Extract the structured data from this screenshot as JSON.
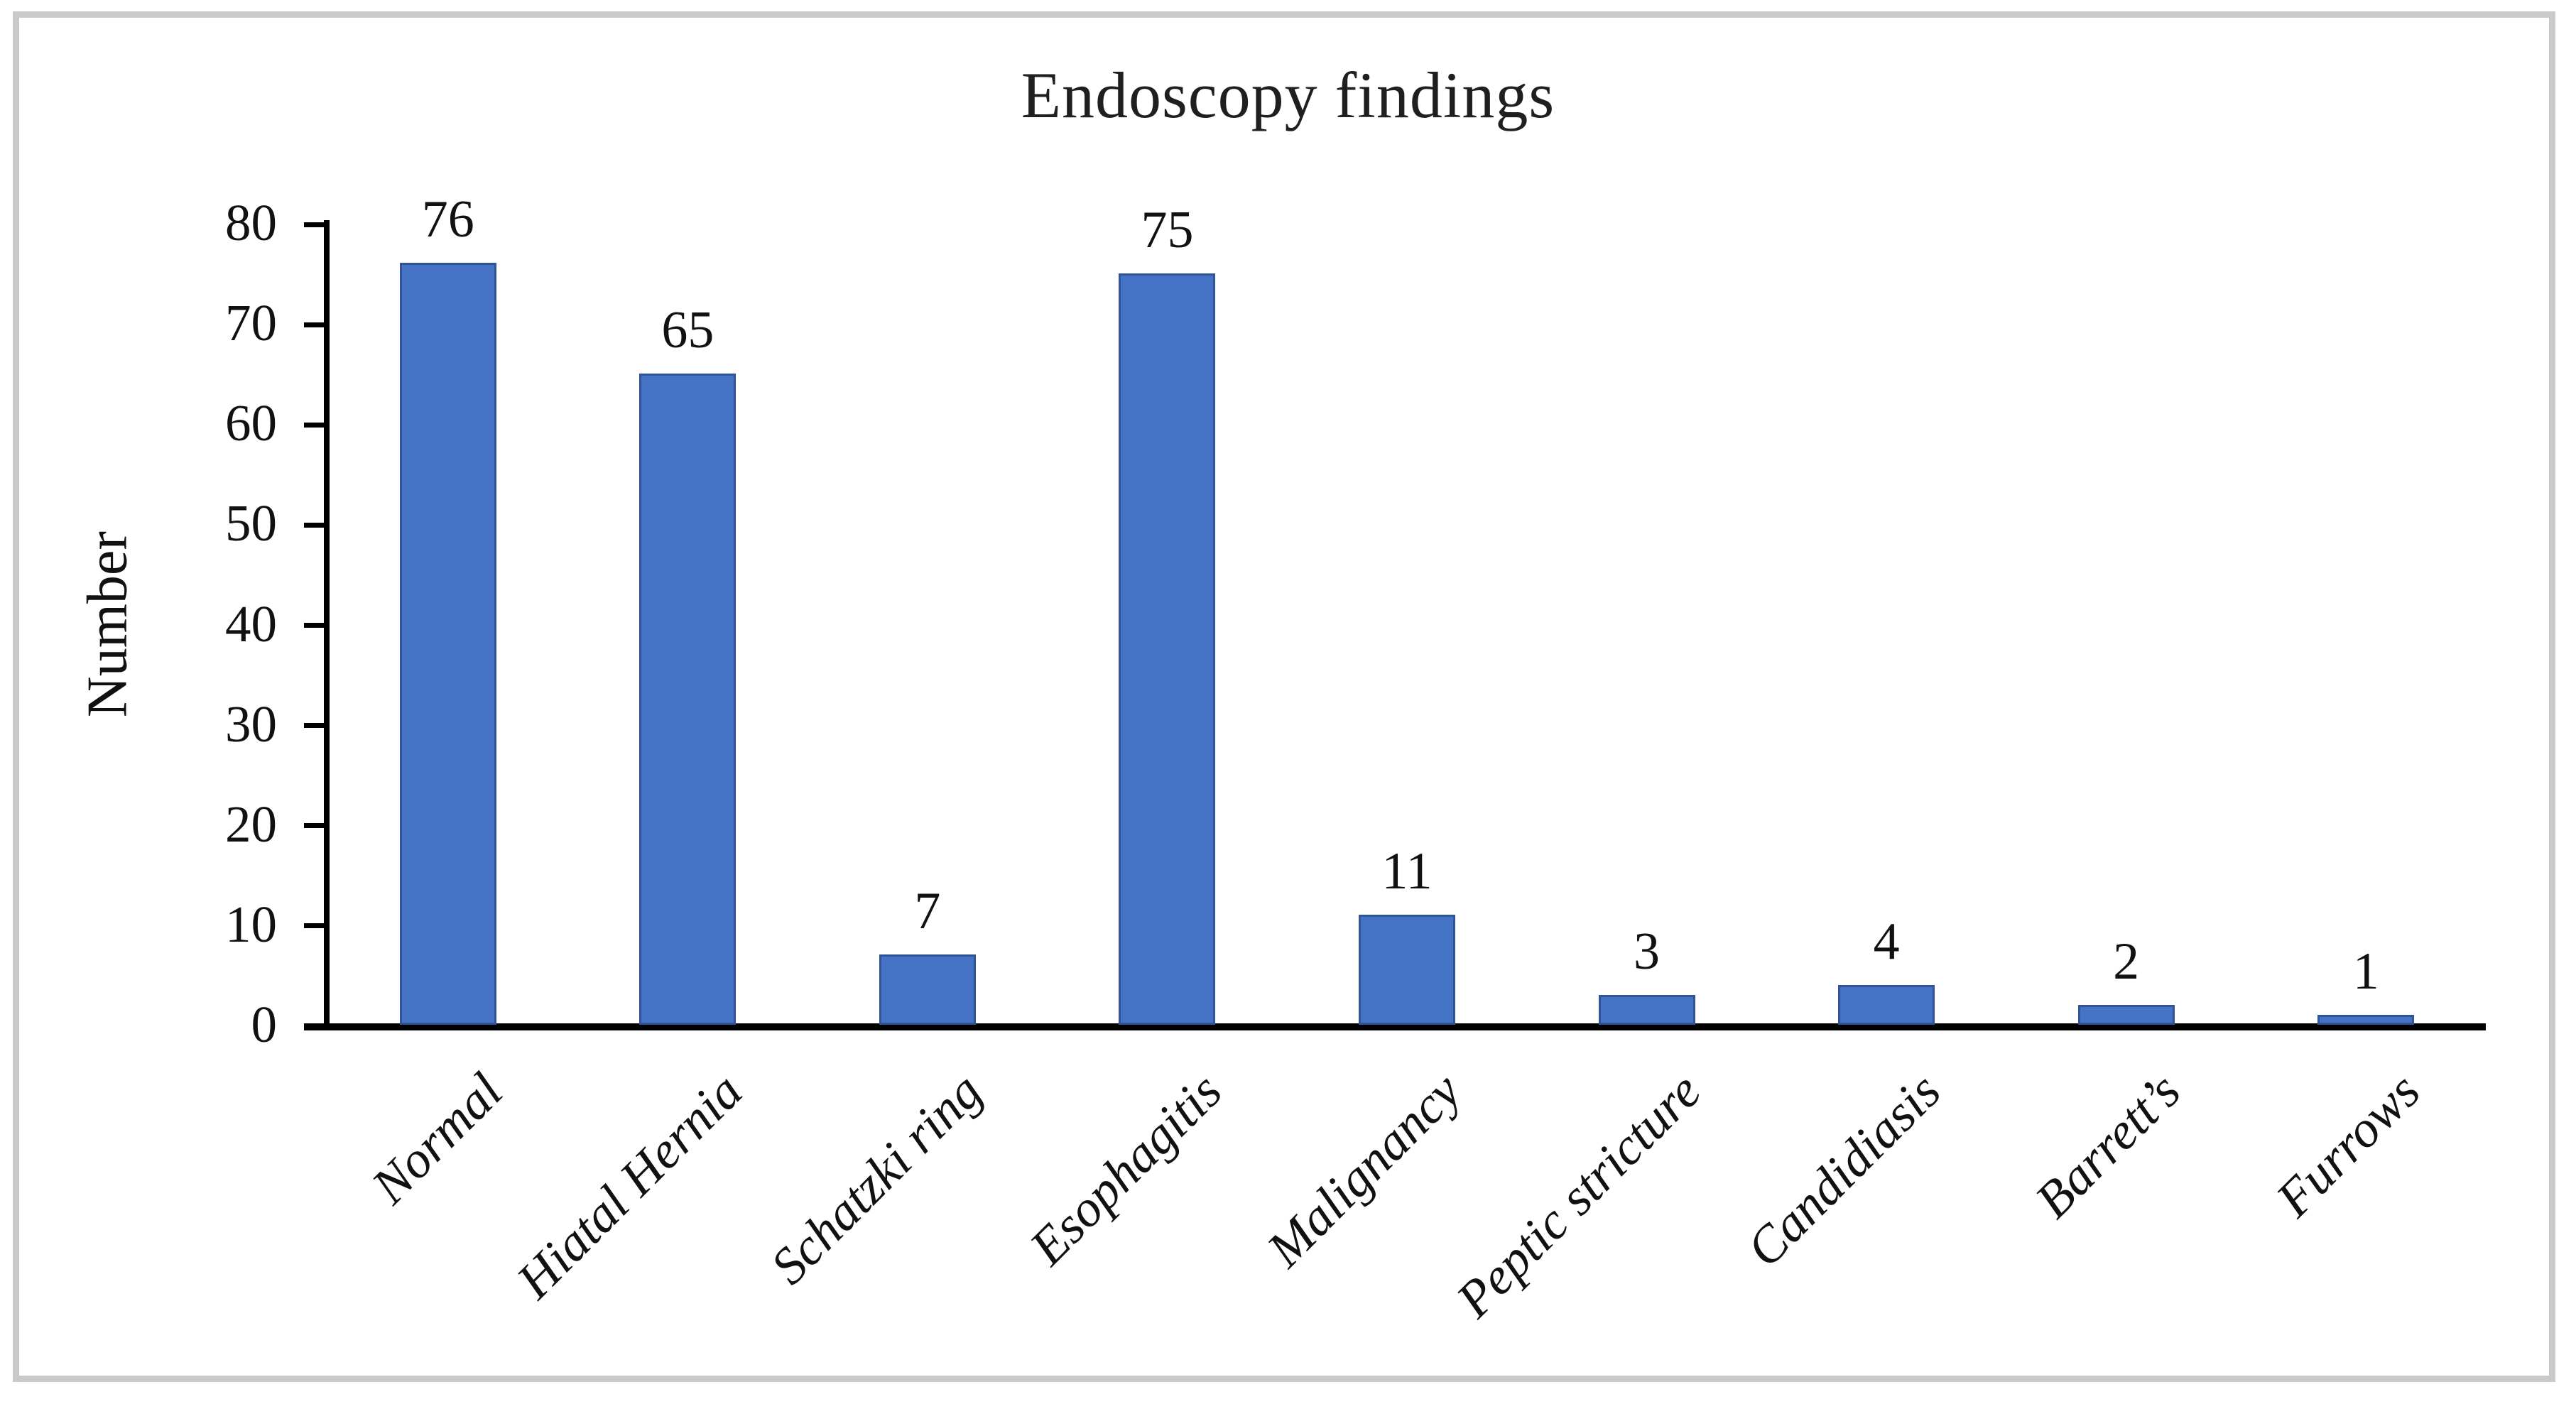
{
  "chart_data": {
    "type": "bar",
    "title": "Endoscopy findings",
    "ylabel": "Number",
    "xlabel": "",
    "categories": [
      "Normal",
      "Hiatal Hernia",
      "Schatzki ring",
      "Esophagitis",
      "Malignancy",
      "Peptic stricture",
      "Candidiasis",
      "Barrett’s",
      "Furrows"
    ],
    "values": [
      76,
      65,
      7,
      75,
      11,
      3,
      4,
      2,
      1
    ],
    "data_labels": [
      76,
      65,
      7,
      75,
      11,
      3,
      4,
      2,
      1
    ],
    "yticks": [
      0,
      10,
      20,
      30,
      40,
      50,
      60,
      70,
      80
    ],
    "ylim": [
      0,
      80
    ],
    "grid": "off",
    "legend": "none",
    "colors": {
      "bar_fill": "#4472c4",
      "bar_border": "#2f5597",
      "axis": "#000000",
      "text": "#111111",
      "frame_border": "#c9c9c9",
      "background": "#ffffff"
    }
  }
}
